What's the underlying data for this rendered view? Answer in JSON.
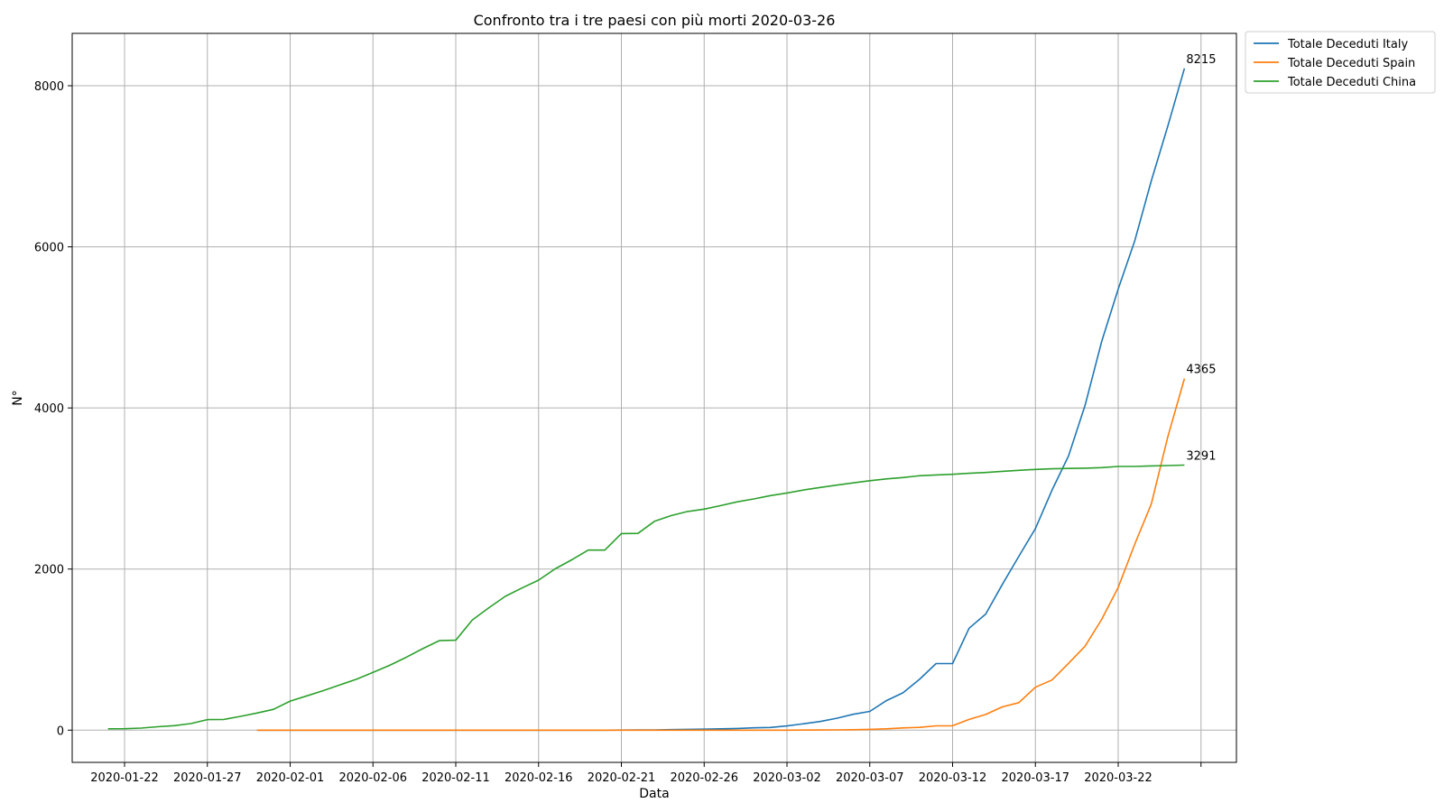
{
  "chart_data": {
    "type": "line",
    "title": "Confronto tra i tre paesi con più morti 2020-03-26",
    "xlabel": "Data",
    "ylabel": "N°",
    "x_start": "2020-01-22",
    "x_ticks": [
      "2020-01-22",
      "2020-01-27",
      "2020-02-01",
      "2020-02-06",
      "2020-02-11",
      "2020-02-16",
      "2020-02-21",
      "2020-02-26",
      "2020-03-02",
      "2020-03-07",
      "2020-03-12",
      "2020-03-17",
      "2020-03-22",
      ""
    ],
    "y_ticks": [
      0,
      2000,
      4000,
      6000,
      8000
    ],
    "ylim": [
      -400,
      8650
    ],
    "grid": true,
    "legend_position": "outside-top-right",
    "colors": {
      "italy": "#1f77b4",
      "spain": "#ff7f0e",
      "china": "#2ca02c",
      "grid": "#b0b0b0"
    },
    "series": [
      {
        "name": "Totale Deceduti Italy",
        "color": "#1f77b4",
        "end_label": "8215",
        "values": [
          0,
          0,
          0,
          0,
          0,
          0,
          0,
          0,
          0,
          0,
          0,
          0,
          0,
          0,
          0,
          0,
          0,
          0,
          0,
          0,
          0,
          0,
          1,
          2,
          3,
          7,
          10,
          12,
          17,
          21,
          29,
          34,
          52,
          79,
          107,
          148,
          197,
          233,
          366,
          463,
          631,
          827,
          827,
          1266,
          1441,
          1809,
          2158,
          2503,
          2978,
          3405,
          4032,
          4825,
          5476,
          6077,
          6820,
          7503,
          8215
        ]
      },
      {
        "name": "Totale Deceduti Spain",
        "color": "#ff7f0e",
        "end_label": "4365",
        "values": [
          0,
          0,
          0,
          0,
          0,
          0,
          0,
          0,
          0,
          0,
          0,
          0,
          0,
          0,
          0,
          0,
          0,
          0,
          0,
          0,
          0,
          0,
          0,
          0,
          0,
          0,
          0,
          0,
          0,
          0,
          0,
          0,
          0,
          1,
          2,
          3,
          5,
          10,
          17,
          28,
          35,
          54,
          55,
          133,
          195,
          289,
          342,
          533,
          623,
          830,
          1043,
          1375,
          1772,
          2311,
          2808,
          3647,
          4365
        ]
      },
      {
        "name": "Totale Deceduti China",
        "color": "#2ca02c",
        "end_label": "3291",
        "values": [
          17,
          18,
          26,
          42,
          56,
          82,
          131,
          133,
          171,
          213,
          259,
          361,
          425,
          490,
          562,
          632,
          717,
          804,
          904,
          1011,
          1111,
          1116,
          1368,
          1520,
          1662,
          1765,
          1863,
          2002,
          2114,
          2236,
          2236,
          2441,
          2443,
          2593,
          2663,
          2715,
          2744,
          2788,
          2835,
          2870,
          2912,
          2945,
          2981,
          3013,
          3042,
          3070,
          3097,
          3119,
          3136,
          3158,
          3169,
          3176,
          3189,
          3199,
          3213,
          3226,
          3237,
          3245,
          3249,
          3253,
          3259,
          3274,
          3274,
          3281,
          3285,
          3291
        ]
      }
    ]
  }
}
